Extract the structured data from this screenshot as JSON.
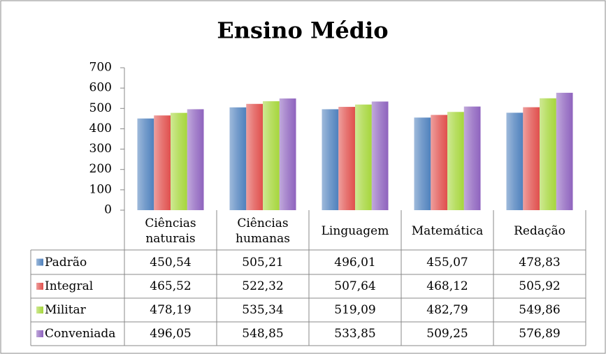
{
  "chart_data": {
    "type": "bar",
    "title": "Ensino Médio",
    "categories": [
      "Ciências naturais",
      "Ciências humanas",
      "Linguagem",
      "Matemática",
      "Redação"
    ],
    "series": [
      {
        "name": "Padrão",
        "color": "#4f81bd",
        "values": [
          450.54,
          505.21,
          496.01,
          455.07,
          478.83
        ],
        "value_labels": [
          "450,54",
          "505,21",
          "496,01",
          "455,07",
          "478,83"
        ]
      },
      {
        "name": "Integral",
        "color": "#e0504d",
        "values": [
          465.52,
          522.32,
          507.64,
          468.12,
          505.92
        ],
        "value_labels": [
          "465,52",
          "522,32",
          "507,64",
          "468,12",
          "505,92"
        ]
      },
      {
        "name": "Militar",
        "color": "#a6d63c",
        "values": [
          478.19,
          535.34,
          519.09,
          482.79,
          549.86
        ],
        "value_labels": [
          "478,19",
          "535,34",
          "519,09",
          "482,79",
          "549,86"
        ]
      },
      {
        "name": "Conveniada",
        "color": "#8e63be",
        "values": [
          496.05,
          548.85,
          533.85,
          509.25,
          576.89
        ],
        "value_labels": [
          "496,05",
          "548,85",
          "533,85",
          "509,25",
          "576,89"
        ]
      }
    ],
    "ylim": [
      0,
      700
    ],
    "yticks": [
      0,
      100,
      200,
      300,
      400,
      500,
      600,
      700
    ],
    "grid": false
  }
}
